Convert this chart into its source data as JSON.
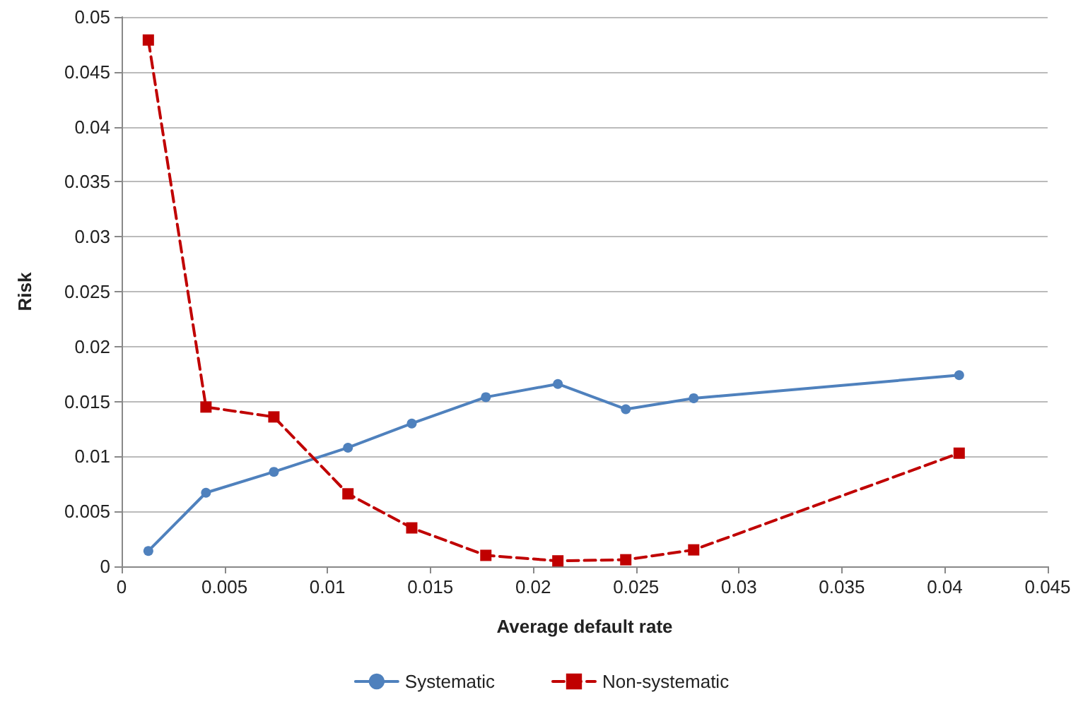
{
  "chart_data": {
    "type": "line",
    "xlabel": "Average default rate",
    "ylabel": "Risk",
    "xlim": [
      0,
      0.045
    ],
    "xticks": [
      0,
      0.005,
      0.01,
      0.015,
      0.02,
      0.025,
      0.03,
      0.035,
      0.04,
      0.045
    ],
    "ylim": [
      0,
      0.05
    ],
    "yticks": [
      0,
      0.005,
      0.01,
      0.015,
      0.02,
      0.025,
      0.03,
      0.035,
      0.04,
      0.045,
      0.05
    ],
    "grid": "y",
    "legend": "bottom",
    "x": [
      0.0013,
      0.0041,
      0.0074,
      0.011,
      0.0141,
      0.0177,
      0.0212,
      0.0245,
      0.0278,
      0.0407
    ],
    "series": [
      {
        "name": "Systematic",
        "color": "#4f81bd",
        "marker": "circle",
        "line_style": "solid",
        "values": [
          0.0014,
          0.0067,
          0.0086,
          0.0108,
          0.013,
          0.0154,
          0.0166,
          0.0143,
          0.0153,
          0.0174
        ]
      },
      {
        "name": "Non-systematic",
        "color": "#c00000",
        "marker": "square",
        "line_style": "dashed",
        "values": [
          0.0479,
          0.0145,
          0.0136,
          0.0066,
          0.0035,
          0.001,
          0.0005,
          0.0006,
          0.0015,
          0.0103
        ]
      }
    ]
  }
}
